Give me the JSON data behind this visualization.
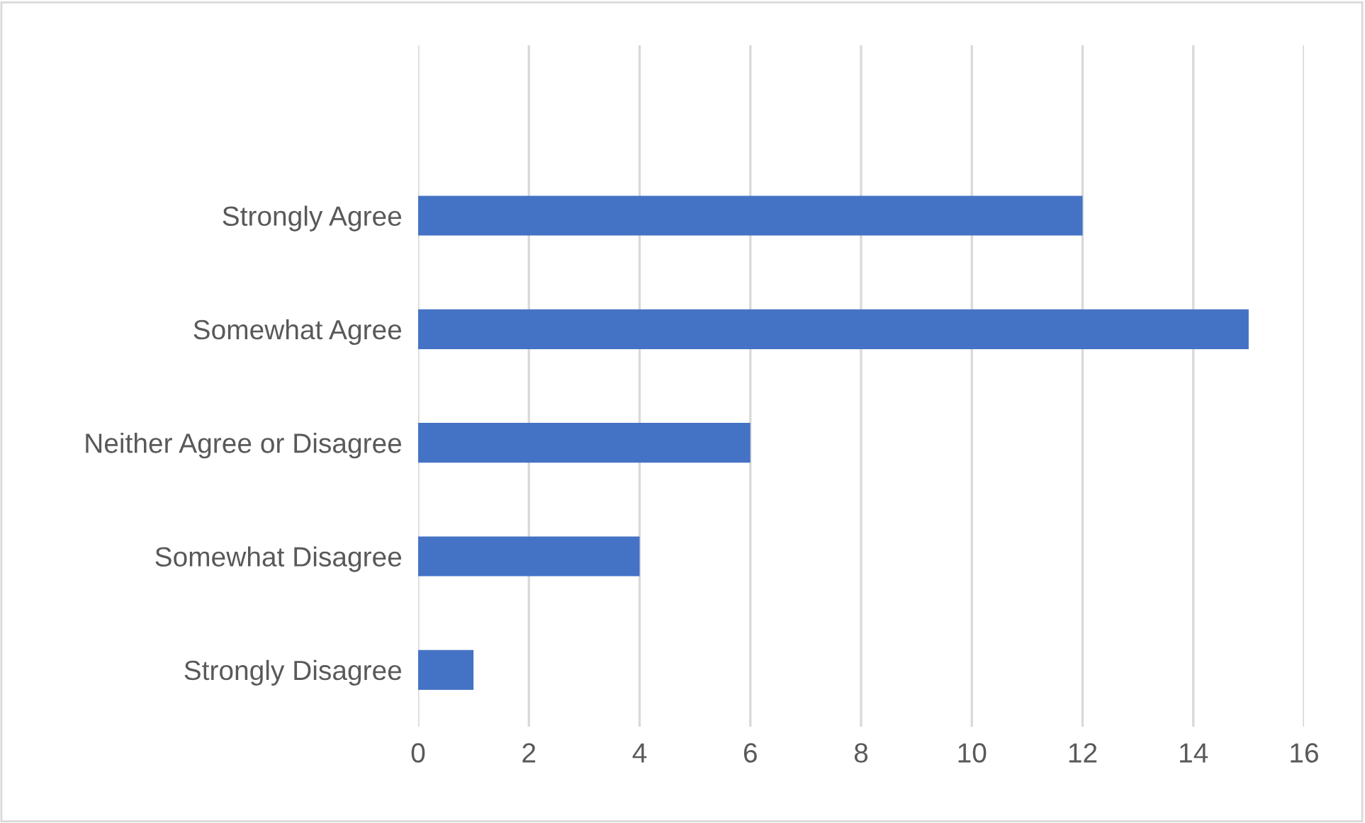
{
  "chart_data": {
    "type": "bar",
    "orientation": "horizontal",
    "categories": [
      null,
      "Strongly Agree",
      "Somewhat Agree",
      "Neither Agree or Disagree",
      "Somewhat Disagree",
      "Strongly Disagree"
    ],
    "values": [
      null,
      12,
      15,
      6,
      4,
      1
    ],
    "color": "#4472c4",
    "xlim": [
      0,
      16
    ],
    "xticks": [
      0,
      2,
      4,
      6,
      8,
      10,
      12,
      14,
      16
    ],
    "grid": "x",
    "legend": false
  }
}
